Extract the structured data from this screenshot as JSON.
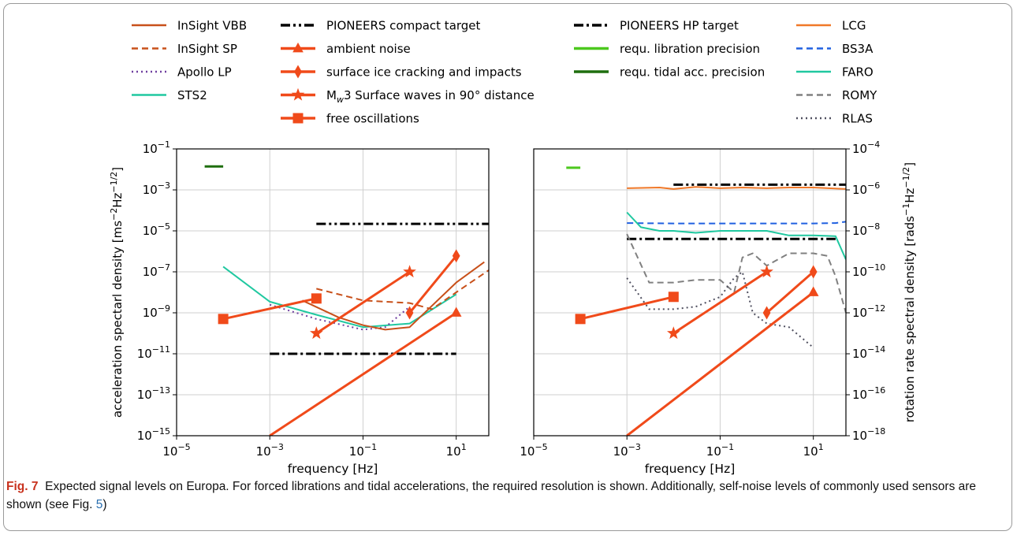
{
  "caption": {
    "figure_label": "Fig. 7",
    "text_before_ref": "Expected signal levels on Europa. For forced librations and tidal accelerations, the required resolution is shown. Additionally, self-noise levels of commonly used sensors are shown (see Fig. ",
    "ref": "5",
    "text_after_ref": ")"
  },
  "legend": {
    "placement": "top, four columns",
    "columns": [
      [
        {
          "label": "InSight VBB",
          "color": "#c8501a",
          "dash": "solid",
          "marker": "none",
          "width": 2
        },
        {
          "label": "InSight SP",
          "color": "#c8501a",
          "dash": "dashed",
          "marker": "none",
          "width": 2
        },
        {
          "label": "Apollo LP",
          "color": "#7040a0",
          "dash": "dotted",
          "marker": "none",
          "width": 2
        },
        {
          "label": "STS2",
          "color": "#20c8a0",
          "dash": "solid",
          "marker": "none",
          "width": 2
        }
      ],
      [
        {
          "label": "PIONEERS compact target",
          "color": "#000000",
          "dash": "dashdotdot",
          "marker": "none",
          "width": 3
        },
        {
          "label": "ambient noise",
          "color": "#f04a1a",
          "dash": "solid",
          "marker": "triangle",
          "width": 3
        },
        {
          "label": "surface ice cracking and impacts",
          "color": "#f04a1a",
          "dash": "solid",
          "marker": "diamond",
          "width": 3
        },
        {
          "label": "Surface waves in 90° distance",
          "math_prefix": "M",
          "math_sub": "w",
          "math_num": "3",
          "color": "#f04a1a",
          "dash": "solid",
          "marker": "star",
          "width": 3
        },
        {
          "label": "free oscillations",
          "color": "#f04a1a",
          "dash": "solid",
          "marker": "square",
          "width": 3
        }
      ],
      [
        {
          "label": "PIONEERS HP target",
          "color": "#000000",
          "dash": "dashdot",
          "marker": "none",
          "width": 3
        },
        {
          "label": "requ. libration precision",
          "color": "#4cc81e",
          "dash": "solid",
          "marker": "none",
          "width": 3
        },
        {
          "label": "requ. tidal acc. precision",
          "color": "#1e6e0e",
          "dash": "solid",
          "marker": "none",
          "width": 3
        }
      ],
      [
        {
          "label": "LCG",
          "color": "#f07828",
          "dash": "solid",
          "marker": "none",
          "width": 2
        },
        {
          "label": "BS3A",
          "color": "#2060e0",
          "dash": "dashed",
          "marker": "none",
          "width": 2
        },
        {
          "label": "FARO",
          "color": "#20c8a0",
          "dash": "solid",
          "marker": "none",
          "width": 2
        },
        {
          "label": "ROMY",
          "color": "#808080",
          "dash": "dashed",
          "marker": "none",
          "width": 2
        },
        {
          "label": "RLAS",
          "color": "#505060",
          "dash": "dotted",
          "marker": "none",
          "width": 2
        }
      ]
    ]
  },
  "chart_data": [
    {
      "type": "line",
      "id": "left",
      "xlabel": "frequency [Hz]",
      "ylabel": "acceleration spectarl density [ms",
      "ylabel_sup1": "−2",
      "ylabel_mid": "Hz",
      "ylabel_sup2": "−1/2",
      "ylabel_end": "]",
      "xscale": "log",
      "yscale": "log",
      "xlim": [
        1e-05,
        50
      ],
      "ylim": [
        1e-15,
        0.1
      ],
      "xticks": [
        {
          "v": -5,
          "base": "10",
          "exp": "−5"
        },
        {
          "v": -3,
          "base": "10",
          "exp": "−3"
        },
        {
          "v": -1,
          "base": "10",
          "exp": "−1"
        },
        {
          "v": 1,
          "base": "10",
          "exp": "1"
        }
      ],
      "yticks": [
        {
          "v": -15,
          "base": "10",
          "exp": "−15"
        },
        {
          "v": -13,
          "base": "10",
          "exp": "−13"
        },
        {
          "v": -11,
          "base": "10",
          "exp": "−11"
        },
        {
          "v": -9,
          "base": "10",
          "exp": "−9"
        },
        {
          "v": -7,
          "base": "10",
          "exp": "−7"
        },
        {
          "v": -5,
          "base": "10",
          "exp": "−5"
        },
        {
          "v": -3,
          "base": "10",
          "exp": "−3"
        },
        {
          "v": -1,
          "base": "10",
          "exp": "−1"
        }
      ],
      "grid": true,
      "series": [
        {
          "name": "PIONEERS compact target",
          "color": "#000000",
          "dash": "dashdotdot",
          "width": 3,
          "x": [
            0.01,
            50
          ],
          "y": [
            2.2e-05,
            2.2e-05
          ]
        },
        {
          "name": "PIONEERS HP target",
          "color": "#000000",
          "dash": "dashdot",
          "width": 3,
          "x": [
            0.001,
            10
          ],
          "y": [
            1e-11,
            1e-11
          ]
        },
        {
          "name": "requ. tidal acc. precision",
          "color": "#1e6e0e",
          "dash": "solid",
          "width": 3,
          "x": [
            4e-05,
            0.0001
          ],
          "y": [
            0.014,
            0.014
          ]
        },
        {
          "name": "STS2",
          "color": "#20c8a0",
          "dash": "solid",
          "width": 2,
          "x": [
            0.0001,
            0.001,
            0.01,
            0.1,
            1,
            10
          ],
          "y": [
            1.8e-07,
            3.5e-09,
            8e-10,
            2e-10,
            3e-10,
            8e-09
          ]
        },
        {
          "name": "Apollo LP",
          "color": "#7040a0",
          "dash": "dotted",
          "width": 2,
          "x": [
            0.001,
            0.01,
            0.1,
            0.3,
            1
          ],
          "y": [
            2.5e-09,
            5e-10,
            1.5e-10,
            2e-10,
            2e-09
          ]
        },
        {
          "name": "InSight VBB",
          "color": "#c8501a",
          "dash": "solid",
          "width": 2,
          "x": [
            0.005,
            0.03,
            0.1,
            0.3,
            1,
            10,
            40
          ],
          "y": [
            4e-09,
            6e-10,
            2.5e-10,
            1.5e-10,
            2e-10,
            3e-08,
            3e-07
          ]
        },
        {
          "name": "InSight SP",
          "color": "#c8501a",
          "dash": "dashed",
          "width": 2,
          "x": [
            0.01,
            0.1,
            1,
            3,
            10,
            50
          ],
          "y": [
            1.5e-08,
            4e-09,
            3e-09,
            1.5e-09,
            1e-08,
            1.2e-07
          ]
        },
        {
          "name": "ambient noise",
          "color": "#f04a1a",
          "marker": "triangle",
          "width": 3,
          "x": [
            0.001,
            10
          ],
          "y": [
            1e-15,
            1e-09
          ],
          "marked": [
            false,
            true
          ]
        },
        {
          "name": "surface ice cracking and impacts",
          "color": "#f04a1a",
          "marker": "diamond",
          "width": 3,
          "x": [
            1,
            10
          ],
          "y": [
            1e-09,
            6e-07
          ],
          "marked": [
            true,
            true
          ]
        },
        {
          "name": "Mw3 Surface waves in 90° distance",
          "color": "#f04a1a",
          "marker": "star",
          "width": 3,
          "x": [
            0.01,
            1
          ],
          "y": [
            1e-10,
            1e-07
          ],
          "marked": [
            true,
            true
          ]
        },
        {
          "name": "free oscillations",
          "color": "#f04a1a",
          "marker": "square",
          "width": 3,
          "x": [
            0.0001,
            0.01
          ],
          "y": [
            5e-10,
            5e-09
          ],
          "marked": [
            true,
            true
          ]
        }
      ]
    },
    {
      "type": "line",
      "id": "right",
      "xlabel": "frequency [Hz]",
      "ylabel": "rotation rate spectral density [rads",
      "ylabel_sup1": "−1",
      "ylabel_mid": "Hz",
      "ylabel_sup2": "−1/2",
      "ylabel_end": "]",
      "xscale": "log",
      "yscale": "log",
      "yaxis_side": "right",
      "xlim": [
        1e-05,
        50
      ],
      "ylim": [
        1e-18,
        0.0001
      ],
      "xticks": [
        {
          "v": -5,
          "base": "10",
          "exp": "−5"
        },
        {
          "v": -3,
          "base": "10",
          "exp": "−3"
        },
        {
          "v": -1,
          "base": "10",
          "exp": "−1"
        },
        {
          "v": 1,
          "base": "10",
          "exp": "1"
        }
      ],
      "yticks": [
        {
          "v": -18,
          "base": "10",
          "exp": "−18"
        },
        {
          "v": -16,
          "base": "10",
          "exp": "−16"
        },
        {
          "v": -14,
          "base": "10",
          "exp": "−14"
        },
        {
          "v": -12,
          "base": "10",
          "exp": "−12"
        },
        {
          "v": -10,
          "base": "10",
          "exp": "−10"
        },
        {
          "v": -8,
          "base": "10",
          "exp": "−8"
        },
        {
          "v": -6,
          "base": "10",
          "exp": "−6"
        },
        {
          "v": -4,
          "base": "10",
          "exp": "−4"
        }
      ],
      "grid": true,
      "series": [
        {
          "name": "PIONEERS compact target",
          "color": "#000000",
          "dash": "dashdotdot",
          "width": 3,
          "x": [
            0.01,
            50
          ],
          "y": [
            1.8e-06,
            1.8e-06
          ]
        },
        {
          "name": "PIONEERS HP target",
          "color": "#000000",
          "dash": "dashdot",
          "width": 3,
          "x": [
            0.001,
            30
          ],
          "y": [
            4e-09,
            4e-09
          ]
        },
        {
          "name": "requ. libration precision",
          "color": "#4cc81e",
          "dash": "solid",
          "width": 3,
          "x": [
            5e-05,
            0.0001
          ],
          "y": [
            1.2e-05,
            1.2e-05
          ]
        },
        {
          "name": "LCG",
          "color": "#f07828",
          "dash": "solid",
          "width": 2,
          "x": [
            0.001,
            0.005,
            0.01,
            0.03,
            0.1,
            0.3,
            1,
            3,
            10,
            50
          ],
          "y": [
            1.2e-06,
            1.3e-06,
            1.1e-06,
            1.4e-06,
            1.2e-06,
            1.3e-06,
            1.2e-06,
            1.3e-06,
            1.3e-06,
            1.1e-06
          ]
        },
        {
          "name": "BS3A",
          "color": "#2060e0",
          "dash": "dashed",
          "width": 2,
          "x": [
            0.001,
            0.01,
            0.1,
            1,
            10,
            30,
            50
          ],
          "y": [
            2.4e-08,
            2.3e-08,
            2.3e-08,
            2.3e-08,
            2.3e-08,
            2.4e-08,
            2.8e-08
          ]
        },
        {
          "name": "FARO",
          "color": "#20c8a0",
          "dash": "solid",
          "width": 2,
          "x": [
            0.001,
            0.002,
            0.005,
            0.01,
            0.03,
            0.1,
            0.3,
            1,
            3,
            10,
            30,
            50
          ],
          "y": [
            8e-08,
            1.5e-08,
            1e-08,
            1e-08,
            8e-09,
            1e-08,
            1e-08,
            1e-08,
            6e-09,
            6e-09,
            5.5e-09,
            4e-10
          ]
        },
        {
          "name": "ROMY",
          "color": "#808080",
          "dash": "dashed",
          "width": 2,
          "x": [
            0.001,
            0.003,
            0.01,
            0.03,
            0.1,
            0.2,
            0.3,
            0.5,
            1,
            3,
            5,
            10,
            20,
            30,
            50
          ],
          "y": [
            7e-09,
            3e-11,
            3e-11,
            4e-11,
            4e-11,
            1e-11,
            5e-10,
            8e-10,
            2e-10,
            8e-10,
            8e-10,
            8e-10,
            6e-10,
            6e-11,
            1e-12
          ]
        },
        {
          "name": "RLAS",
          "color": "#505060",
          "dash": "dotted",
          "width": 2,
          "x": [
            0.001,
            0.003,
            0.01,
            0.03,
            0.1,
            0.2,
            0.3,
            0.5,
            1,
            3,
            10
          ],
          "y": [
            5e-11,
            1.5e-12,
            1.5e-12,
            2e-12,
            6e-12,
            5e-11,
            1e-10,
            1e-12,
            3e-13,
            2e-13,
            2e-14
          ]
        },
        {
          "name": "ambient noise",
          "color": "#f04a1a",
          "marker": "triangle",
          "width": 3,
          "x": [
            0.001,
            10
          ],
          "y": [
            1e-18,
            1e-11
          ],
          "marked": [
            false,
            true
          ]
        },
        {
          "name": "surface ice cracking and impacts",
          "color": "#f04a1a",
          "marker": "diamond",
          "width": 3,
          "x": [
            1,
            10
          ],
          "y": [
            1e-12,
            1e-10
          ],
          "marked": [
            true,
            true
          ]
        },
        {
          "name": "Mw3 Surface waves in 90° distance",
          "color": "#f04a1a",
          "marker": "star",
          "width": 3,
          "x": [
            0.01,
            1
          ],
          "y": [
            1e-13,
            1e-10
          ],
          "marked": [
            true,
            true
          ]
        },
        {
          "name": "free oscillations",
          "color": "#f04a1a",
          "marker": "square",
          "width": 3,
          "x": [
            0.0001,
            0.01
          ],
          "y": [
            5e-13,
            6e-12
          ],
          "marked": [
            true,
            true
          ]
        }
      ]
    }
  ]
}
